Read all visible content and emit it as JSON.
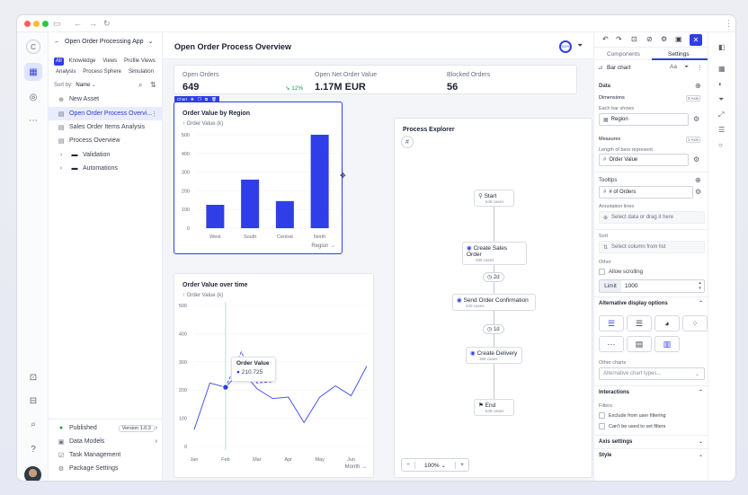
{
  "breadcrumb": {
    "app": "Open Order Processing App"
  },
  "filters": {
    "chips": [
      "All",
      "Knowledge",
      "Views",
      "Profile Views",
      "Analysis",
      "Process Sphere",
      "Simulation"
    ],
    "sort_label": "Sort by:",
    "sort_value": "Name"
  },
  "tree": [
    {
      "label": "New Asset",
      "icon": "plus-icon"
    },
    {
      "label": "Open Order Process Overvi...",
      "icon": "view-icon",
      "selected": true
    },
    {
      "label": "Sales Order Items Analysis",
      "icon": "view-icon"
    },
    {
      "label": "Process Overview",
      "icon": "view-icon"
    },
    {
      "label": "Validation",
      "icon": "folder-icon"
    },
    {
      "label": "Automations",
      "icon": "folder-icon"
    }
  ],
  "sidebar_footer": {
    "published": "Published",
    "version": "Version 1.0.3",
    "items": [
      "Data Models",
      "Task Management",
      "Package Settings"
    ]
  },
  "main": {
    "title": "Open Order Process Overview",
    "badge": "100%"
  },
  "kpis": [
    {
      "label": "Open Orders",
      "value": "649",
      "delta": "12%"
    },
    {
      "label": "Open Net Order Value",
      "value": "1.17M EUR"
    },
    {
      "label": "Blocked Orders",
      "value": "56"
    }
  ],
  "bar_toolbar": {
    "label": "Chart"
  },
  "bar_chart": {
    "title": "Order Value by Region",
    "ylabel": "Order Value (k)",
    "xlabel": "Region",
    "yticks": [
      "500",
      "400",
      "300",
      "200",
      "100",
      "0"
    ]
  },
  "line_chart": {
    "title": "Order Value over time",
    "ylabel": "Order Value (k)",
    "xlabel": "Month",
    "yticks": [
      "500",
      "400",
      "300",
      "200",
      "100",
      "0"
    ],
    "tooltip_title": "Order Value",
    "tooltip_value": "210.725"
  },
  "process": {
    "title": "Process Explorer",
    "nodes": [
      {
        "label": "Start",
        "sub": "649 cases"
      },
      {
        "label": "Create Sales Order",
        "sub": "485 cases"
      },
      {
        "label": "Send Order Confirmation",
        "sub": "420 cases"
      },
      {
        "label": "Create Delivery",
        "sub": "359 cases"
      },
      {
        "label": "End",
        "sub": "649 cases"
      }
    ],
    "durations": [
      "2d",
      "1d"
    ],
    "zoom": "100%"
  },
  "panel": {
    "tabs": [
      "Components",
      "Settings"
    ],
    "chart_type": "Bar chart",
    "data_label": "Data",
    "dimensions_label": "Dimensions",
    "dimensions_count": "0 Axis",
    "each_bar_label": "Each bar shows",
    "dimension_value": "Region",
    "measures_label": "Measures",
    "measures_count": "1 Axis",
    "length_label": "Length of bars represent",
    "measure_value": "Order Value",
    "tooltips_label": "Tooltips",
    "tooltip_value": "# of Orders",
    "annotation_label": "Annotation lines",
    "annotation_placeholder": "Select data or drag it here",
    "sort_label": "Sort",
    "sort_placeholder": "Select column from list",
    "other_label": "Other",
    "allow_scrolling": "Allow scrolling",
    "limit_label": "Limit",
    "limit_value": "1000",
    "alt_display": "Alternative display options",
    "other_charts": "Other charts",
    "alt_placeholder": "Alternative chart types...",
    "interactions": "Interactions",
    "filters_label": "Filters",
    "exclude_filter": "Exclude from user filtering",
    "cant_use": "Can't be used to set filters",
    "axis_settings": "Axis settings",
    "style": "Style"
  },
  "chart_data": [
    {
      "type": "bar",
      "title": "Order Value by Region",
      "ylabel": "Order Value (k)",
      "xlabel": "Region",
      "categories": [
        "West",
        "South",
        "Central",
        "North"
      ],
      "values": [
        125,
        260,
        145,
        500
      ],
      "ylim": [
        0,
        500
      ]
    },
    {
      "type": "line",
      "title": "Order Value over time",
      "ylabel": "Order Value (k)",
      "xlabel": "Month",
      "categories": [
        "Jan",
        "Feb",
        "Mar",
        "Apr",
        "May",
        "Jun"
      ],
      "x": [
        0,
        0.5,
        1,
        1.5,
        2,
        2.5,
        3,
        3.5,
        4,
        4.5,
        5,
        5.5
      ],
      "series": [
        {
          "values": [
            60,
            225,
            210,
            270,
            205,
            170,
            175,
            85,
            175,
            215,
            180,
            285
          ]
        },
        {
          "values": [
            null,
            null,
            210,
            335,
            225,
            230,
            null,
            null,
            null,
            null,
            null,
            null
          ]
        }
      ],
      "ylim": [
        0,
        500
      ]
    }
  ]
}
